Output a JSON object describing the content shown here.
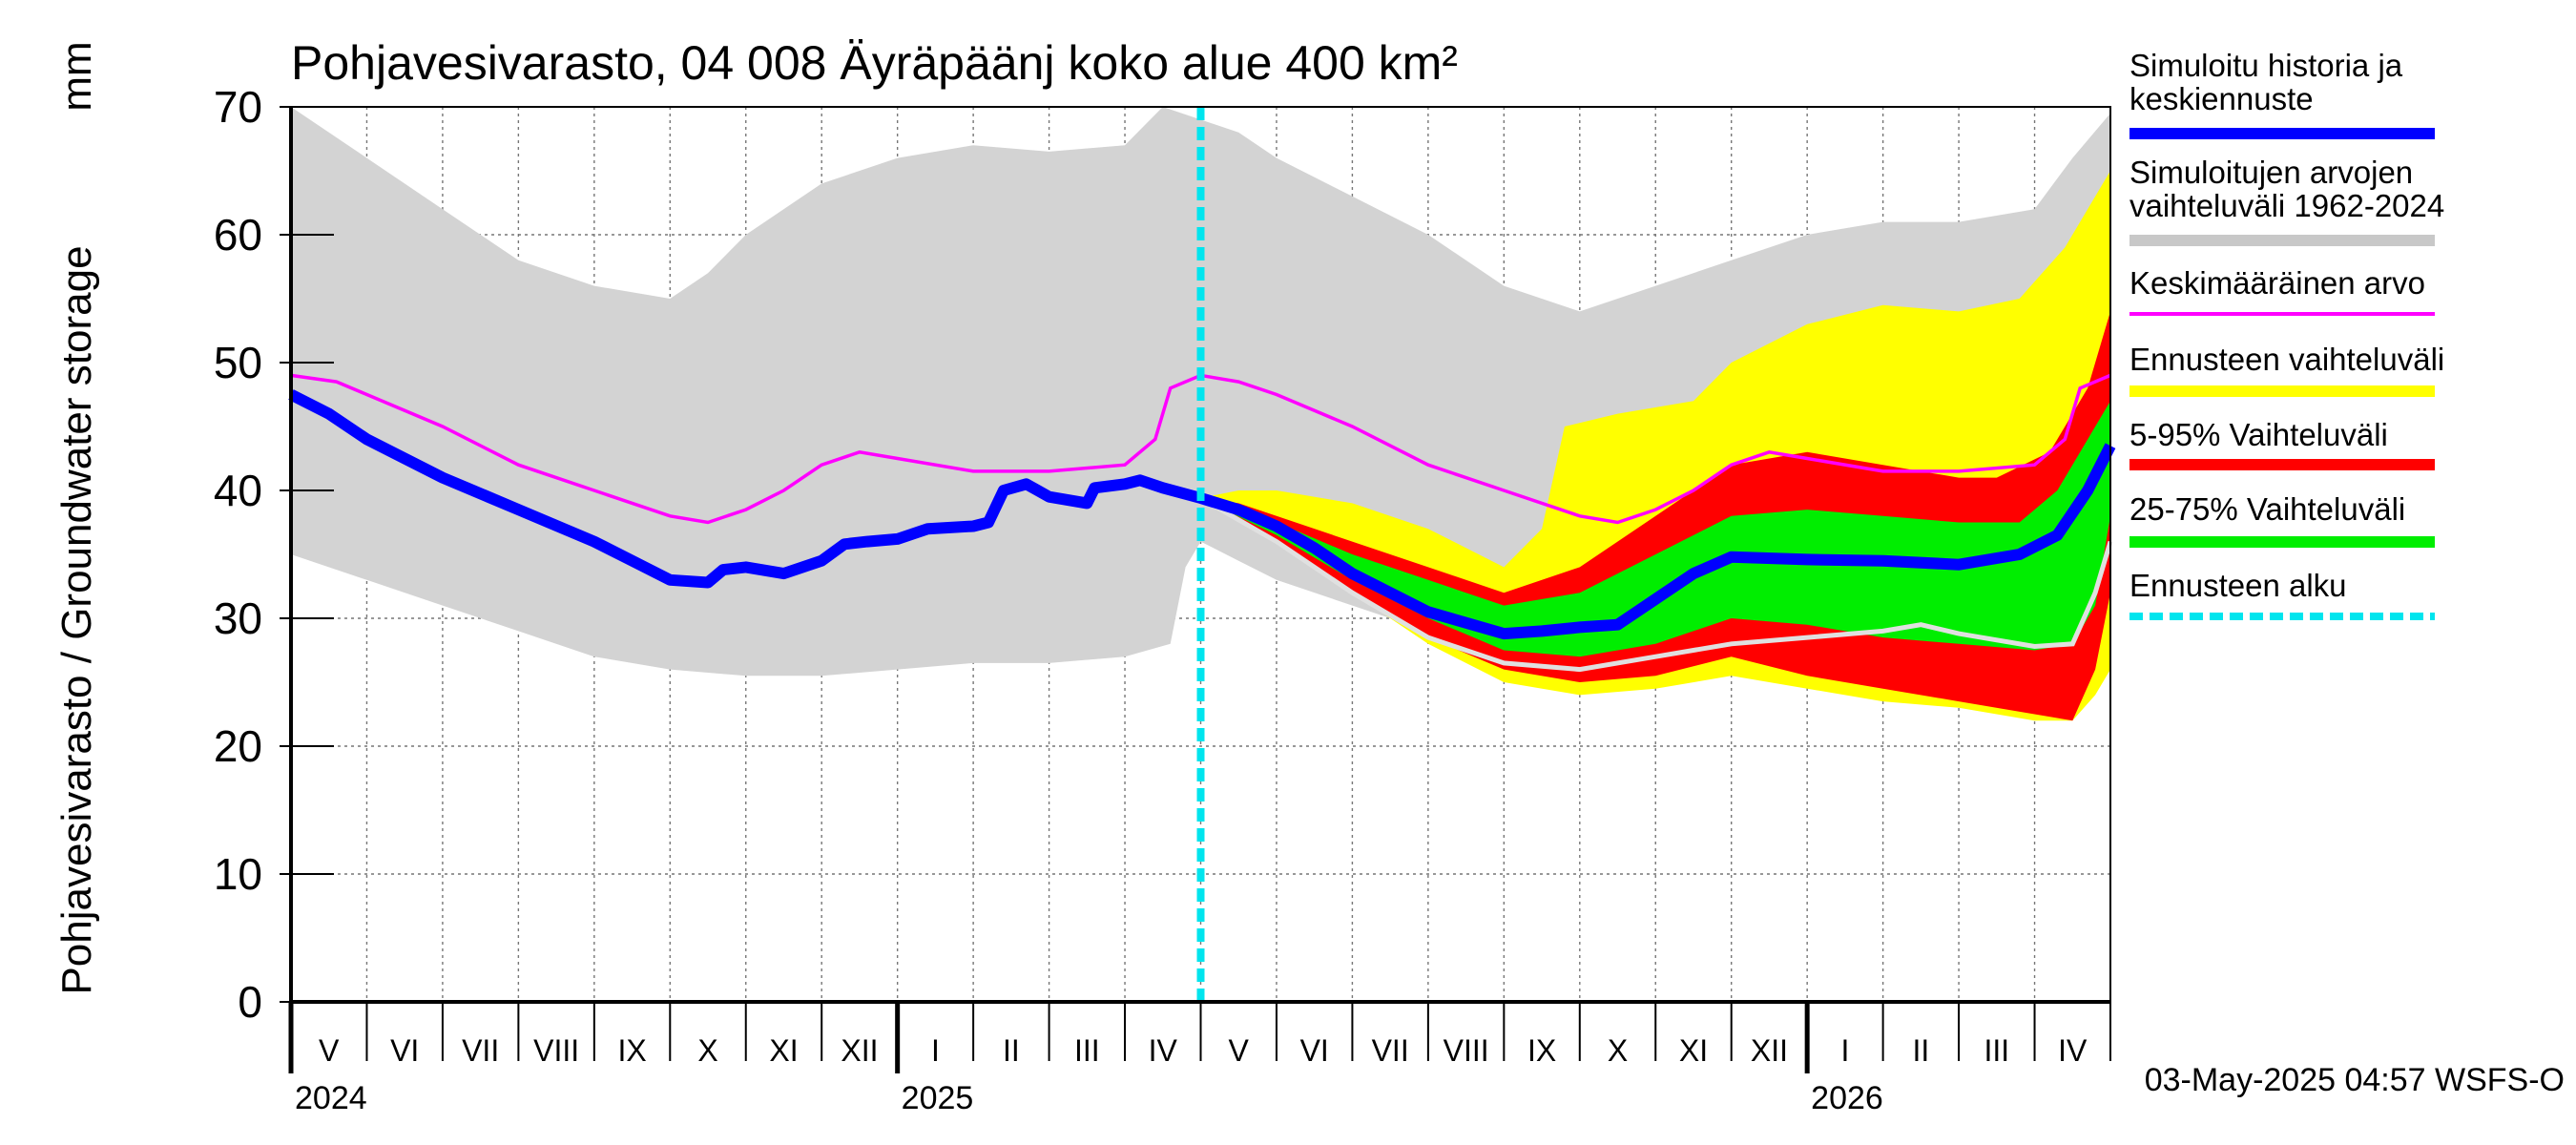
{
  "chart_data": {
    "type": "area",
    "title": "Pohjavesivarasto, 04 008 Äyräpäänj koko alue 400 km²",
    "ylabel": "Pohjavesivarasto / Groundwater storage",
    "yunit": "mm",
    "ylim": [
      0,
      70
    ],
    "yticks": [
      0,
      10,
      20,
      30,
      40,
      50,
      60,
      70
    ],
    "xlim_months": [
      0,
      24
    ],
    "grid": true,
    "month_labels": [
      "V",
      "VI",
      "VII",
      "VIII",
      "IX",
      "X",
      "XI",
      "XII",
      "I",
      "II",
      "III",
      "IV",
      "V",
      "VI",
      "VII",
      "VIII",
      "IX",
      "X",
      "XI",
      "XII",
      "I",
      "II",
      "III",
      "IV"
    ],
    "year_labels": [
      {
        "label": "2024",
        "month_index": 0
      },
      {
        "label": "2025",
        "month_index": 8
      },
      {
        "label": "2026",
        "month_index": 20
      }
    ],
    "forecast_start_month": 12,
    "footer": "03-May-2025 04:57 WSFS-O",
    "legend": [
      {
        "key": "sim",
        "label_lines": [
          "Simuloitu historia ja",
          "keskiennuste"
        ],
        "color": "#0000ff",
        "style": "thick"
      },
      {
        "key": "range",
        "label_lines": [
          "Simuloitujen arvojen",
          "vaihteluväli 1962-2024"
        ],
        "color": "#c8c8c8",
        "style": "thick"
      },
      {
        "key": "mean",
        "label_lines": [
          "Keskimääräinen arvo"
        ],
        "color": "#ff00ff",
        "style": "thin"
      },
      {
        "key": "fc",
        "label_lines": [
          "Ennusteen vaihteluväli"
        ],
        "color": "#ffff00",
        "style": "thick"
      },
      {
        "key": "p5_95",
        "label_lines": [
          "5-95% Vaihteluväli"
        ],
        "color": "#ff0000",
        "style": "thick"
      },
      {
        "key": "p25_75",
        "label_lines": [
          "25-75% Vaihteluväli"
        ],
        "color": "#00ee00",
        "style": "thick"
      },
      {
        "key": "start",
        "label_lines": [
          "Ennusteen alku"
        ],
        "color": "#00e5ee",
        "style": "dashed"
      }
    ],
    "series": {
      "hist_range_upper": [
        [
          0,
          70
        ],
        [
          1,
          66
        ],
        [
          2,
          62
        ],
        [
          3,
          58
        ],
        [
          4,
          56
        ],
        [
          5,
          55
        ],
        [
          5.5,
          57
        ],
        [
          6,
          60
        ],
        [
          7,
          64
        ],
        [
          8,
          66
        ],
        [
          9,
          67
        ],
        [
          10,
          66.5
        ],
        [
          11,
          67
        ],
        [
          11.5,
          70
        ],
        [
          12,
          69
        ],
        [
          12.5,
          68
        ],
        [
          13,
          66
        ],
        [
          14,
          63
        ],
        [
          15,
          60
        ],
        [
          16,
          56
        ],
        [
          17,
          54
        ],
        [
          17.5,
          55
        ],
        [
          18,
          56
        ],
        [
          19,
          58
        ],
        [
          20,
          60
        ],
        [
          21,
          61
        ],
        [
          22,
          61
        ],
        [
          23,
          62
        ],
        [
          23.5,
          66
        ],
        [
          24,
          69.5
        ]
      ],
      "hist_range_lower": [
        [
          0,
          35
        ],
        [
          1,
          33
        ],
        [
          2,
          31
        ],
        [
          3,
          29
        ],
        [
          4,
          27
        ],
        [
          5,
          26
        ],
        [
          6,
          25.5
        ],
        [
          7,
          25.5
        ],
        [
          8,
          26
        ],
        [
          9,
          26.5
        ],
        [
          10,
          26.5
        ],
        [
          11,
          27
        ],
        [
          11.6,
          28
        ],
        [
          11.8,
          34
        ],
        [
          12,
          36
        ],
        [
          12.5,
          34.5
        ],
        [
          13,
          33
        ],
        [
          14,
          31
        ],
        [
          15,
          29
        ],
        [
          16,
          27
        ],
        [
          16.5,
          26
        ],
        [
          17,
          25.5
        ],
        [
          18,
          25.5
        ],
        [
          19,
          26
        ],
        [
          20,
          26
        ],
        [
          21,
          26
        ],
        [
          22,
          26
        ],
        [
          23,
          26.5
        ],
        [
          23.8,
          28
        ],
        [
          24,
          34
        ]
      ],
      "mean": [
        [
          0,
          49
        ],
        [
          0.6,
          48.5
        ],
        [
          1,
          47.5
        ],
        [
          2,
          45
        ],
        [
          3,
          42
        ],
        [
          4,
          40
        ],
        [
          5,
          38
        ],
        [
          5.5,
          37.5
        ],
        [
          6,
          38.5
        ],
        [
          6.5,
          40
        ],
        [
          7,
          42
        ],
        [
          7.5,
          43
        ],
        [
          8,
          42.5
        ],
        [
          9,
          41.5
        ],
        [
          10,
          41.5
        ],
        [
          11,
          42
        ],
        [
          11.4,
          44
        ],
        [
          11.6,
          48
        ],
        [
          12,
          49
        ],
        [
          12.5,
          48.5
        ],
        [
          13,
          47.5
        ],
        [
          14,
          45
        ],
        [
          15,
          42
        ],
        [
          16,
          40
        ],
        [
          17,
          38
        ],
        [
          17.5,
          37.5
        ],
        [
          18,
          38.5
        ],
        [
          18.5,
          40
        ],
        [
          19,
          42
        ],
        [
          19.5,
          43
        ],
        [
          20,
          42.5
        ],
        [
          21,
          41.5
        ],
        [
          22,
          41.5
        ],
        [
          23,
          42
        ],
        [
          23.4,
          44
        ],
        [
          23.6,
          48
        ],
        [
          24,
          49
        ]
      ],
      "simulated": [
        [
          0,
          47.5
        ],
        [
          0.5,
          46
        ],
        [
          1,
          44
        ],
        [
          1.5,
          42.5
        ],
        [
          2,
          41
        ],
        [
          3,
          38.5
        ],
        [
          4,
          36
        ],
        [
          4.5,
          34.5
        ],
        [
          5,
          33
        ],
        [
          5.5,
          32.8
        ],
        [
          5.7,
          33.8
        ],
        [
          6,
          34
        ],
        [
          6.5,
          33.5
        ],
        [
          7,
          34.5
        ],
        [
          7.3,
          35.8
        ],
        [
          7.6,
          36
        ],
        [
          8,
          36.2
        ],
        [
          8.4,
          37
        ],
        [
          9,
          37.2
        ],
        [
          9.2,
          37.5
        ],
        [
          9.4,
          40
        ],
        [
          9.7,
          40.5
        ],
        [
          10,
          39.5
        ],
        [
          10.5,
          39
        ],
        [
          10.6,
          40.2
        ],
        [
          11,
          40.5
        ],
        [
          11.2,
          40.8
        ],
        [
          11.5,
          40.2
        ],
        [
          12,
          39.4
        ],
        [
          12.5,
          38.5
        ],
        [
          13,
          37.2
        ],
        [
          13.5,
          35.5
        ],
        [
          14,
          33.5
        ],
        [
          15,
          30.5
        ],
        [
          16,
          28.8
        ],
        [
          16.5,
          29
        ],
        [
          17,
          29.3
        ],
        [
          17.5,
          29.5
        ],
        [
          18,
          31.5
        ],
        [
          18.5,
          33.5
        ],
        [
          19,
          34.8
        ],
        [
          20,
          34.6
        ],
        [
          21,
          34.5
        ],
        [
          22,
          34.2
        ],
        [
          22.8,
          35
        ],
        [
          23.3,
          36.5
        ],
        [
          23.7,
          40
        ],
        [
          24,
          43.5
        ]
      ],
      "fc_upper": [
        [
          12,
          39.4
        ],
        [
          12.5,
          40
        ],
        [
          13,
          40
        ],
        [
          14,
          39
        ],
        [
          15,
          37
        ],
        [
          16,
          34
        ],
        [
          16.5,
          37
        ],
        [
          16.8,
          45
        ],
        [
          17.5,
          46
        ],
        [
          18.5,
          47
        ],
        [
          19,
          50
        ],
        [
          20,
          53
        ],
        [
          21,
          54.5
        ],
        [
          22,
          54
        ],
        [
          22.8,
          55
        ],
        [
          23.4,
          59
        ],
        [
          24,
          65
        ]
      ],
      "fc_lower": [
        [
          12,
          39.4
        ],
        [
          13,
          36
        ],
        [
          14,
          32
        ],
        [
          15,
          28
        ],
        [
          16,
          25
        ],
        [
          17,
          24
        ],
        [
          18,
          24.5
        ],
        [
          19,
          25.5
        ],
        [
          20,
          24.5
        ],
        [
          21,
          23.5
        ],
        [
          22,
          23
        ],
        [
          23,
          22
        ],
        [
          23.5,
          22
        ],
        [
          23.8,
          24
        ],
        [
          24,
          26
        ]
      ],
      "p5_95_upper": [
        [
          12,
          39.4
        ],
        [
          12.5,
          39
        ],
        [
          13,
          38
        ],
        [
          14,
          36
        ],
        [
          15,
          34
        ],
        [
          16,
          32
        ],
        [
          17,
          34
        ],
        [
          18,
          38
        ],
        [
          19,
          42
        ],
        [
          20,
          43
        ],
        [
          21,
          42
        ],
        [
          22,
          41
        ],
        [
          22.5,
          41
        ],
        [
          23.2,
          43
        ],
        [
          23.7,
          48
        ],
        [
          24,
          54
        ]
      ],
      "p5_95_lower": [
        [
          12,
          39.4
        ],
        [
          13,
          36
        ],
        [
          14,
          32
        ],
        [
          15,
          28.5
        ],
        [
          16,
          26
        ],
        [
          17,
          25
        ],
        [
          18,
          25.5
        ],
        [
          19,
          27
        ],
        [
          20,
          25.5
        ],
        [
          21,
          24.5
        ],
        [
          22,
          23.5
        ],
        [
          23,
          22.5
        ],
        [
          23.5,
          22
        ],
        [
          23.8,
          26
        ],
        [
          24,
          32
        ]
      ],
      "p25_75_upper": [
        [
          12,
          39.4
        ],
        [
          12.5,
          38.5
        ],
        [
          13,
          37.5
        ],
        [
          14,
          35
        ],
        [
          15,
          33
        ],
        [
          16,
          31
        ],
        [
          17,
          32
        ],
        [
          18,
          35
        ],
        [
          19,
          38
        ],
        [
          20,
          38.5
        ],
        [
          21,
          38
        ],
        [
          22,
          37.5
        ],
        [
          22.8,
          37.5
        ],
        [
          23.3,
          40
        ],
        [
          24,
          47
        ]
      ],
      "p25_75_lower": [
        [
          12,
          39.4
        ],
        [
          13,
          36.5
        ],
        [
          14,
          33
        ],
        [
          15,
          30
        ],
        [
          16,
          27.5
        ],
        [
          17,
          27
        ],
        [
          18,
          28
        ],
        [
          19,
          30
        ],
        [
          20,
          29.5
        ],
        [
          21,
          28.5
        ],
        [
          22,
          28
        ],
        [
          23,
          27.5
        ],
        [
          23.5,
          28
        ],
        [
          23.8,
          31
        ],
        [
          24,
          38
        ]
      ],
      "p50": [
        [
          12,
          39.4
        ],
        [
          13,
          36
        ],
        [
          14,
          32
        ],
        [
          15,
          28.5
        ],
        [
          16,
          26.5
        ],
        [
          17,
          26
        ],
        [
          18,
          27
        ],
        [
          19,
          28
        ],
        [
          20,
          28.5
        ],
        [
          21,
          29
        ],
        [
          21.5,
          29.5
        ],
        [
          22,
          28.8
        ],
        [
          23,
          27.8
        ],
        [
          23.5,
          28
        ],
        [
          23.8,
          32
        ],
        [
          24,
          36
        ]
      ]
    }
  }
}
